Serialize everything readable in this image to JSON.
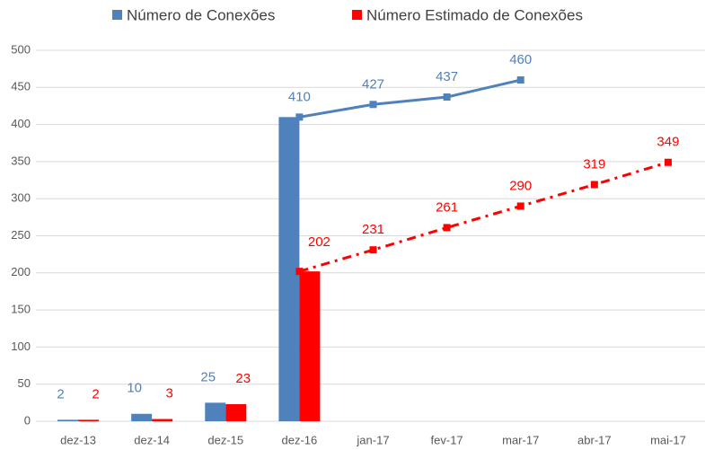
{
  "chart_data": {
    "type": "combo",
    "categories": [
      "dez-13",
      "dez-14",
      "dez-15",
      "dez-16",
      "jan-17",
      "fev-17",
      "mar-17",
      "abr-17",
      "mai-17"
    ],
    "series": [
      {
        "name": "Número de Conexões",
        "color": "#4f81bd",
        "values": [
          2,
          10,
          25,
          410,
          null,
          null,
          null,
          null,
          null
        ],
        "line_values": [
          null,
          null,
          null,
          410,
          427,
          437,
          460,
          null,
          null
        ],
        "line_style": "solid"
      },
      {
        "name": "Número Estimado de Conexões",
        "color": "#ff0000",
        "values": [
          2,
          3,
          23,
          202,
          null,
          null,
          null,
          null,
          null
        ],
        "line_values": [
          null,
          null,
          null,
          202,
          231,
          261,
          290,
          319,
          349
        ],
        "line_style": "dash-dot"
      }
    ],
    "ylim": [
      0,
      500
    ],
    "yticks": [
      0,
      50,
      100,
      150,
      200,
      250,
      300,
      350,
      400,
      450,
      500
    ],
    "grid": true,
    "legend": "top"
  }
}
